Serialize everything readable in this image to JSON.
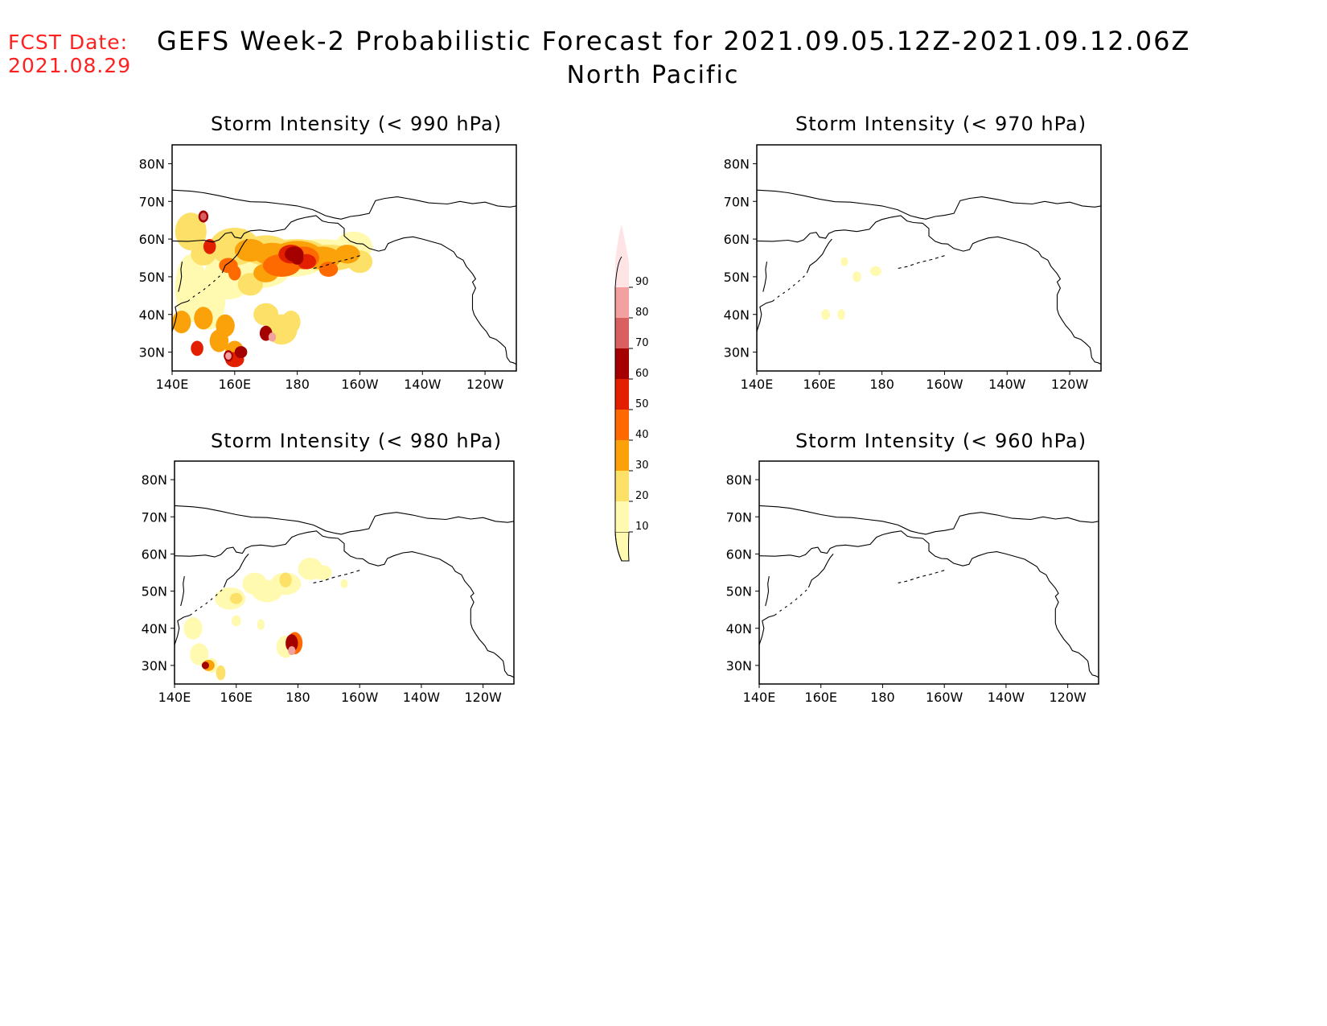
{
  "fcst": {
    "label": "FCST Date:",
    "date": "2021.08.29"
  },
  "header": {
    "title": "GEFS Week-2 Probabilistic Forecast for 2021.09.05.12Z-2021.09.12.06Z",
    "subtitle": "North Pacific"
  },
  "panels": [
    {
      "title": "Storm Intensity (< 990 hPa)"
    },
    {
      "title": "Storm Intensity (< 970 hPa)"
    },
    {
      "title": "Storm Intensity (< 980 hPa)"
    },
    {
      "title": "Storm Intensity (< 960 hPa)"
    }
  ],
  "axes": {
    "lat_labels": [
      "80N",
      "70N",
      "60N",
      "50N",
      "40N",
      "30N"
    ],
    "lon_labels": [
      "140E",
      "160E",
      "180",
      "160W",
      "140W",
      "120W"
    ]
  },
  "colorbar": {
    "levels": [
      "10",
      "20",
      "30",
      "40",
      "50",
      "60",
      "70",
      "80",
      "90"
    ],
    "colors": [
      "#fffab0",
      "#fde068",
      "#fba20a",
      "#ff6a00",
      "#e22000",
      "#a50000",
      "#d86060",
      "#f2a0a0",
      "#ffe4e6"
    ]
  }
}
